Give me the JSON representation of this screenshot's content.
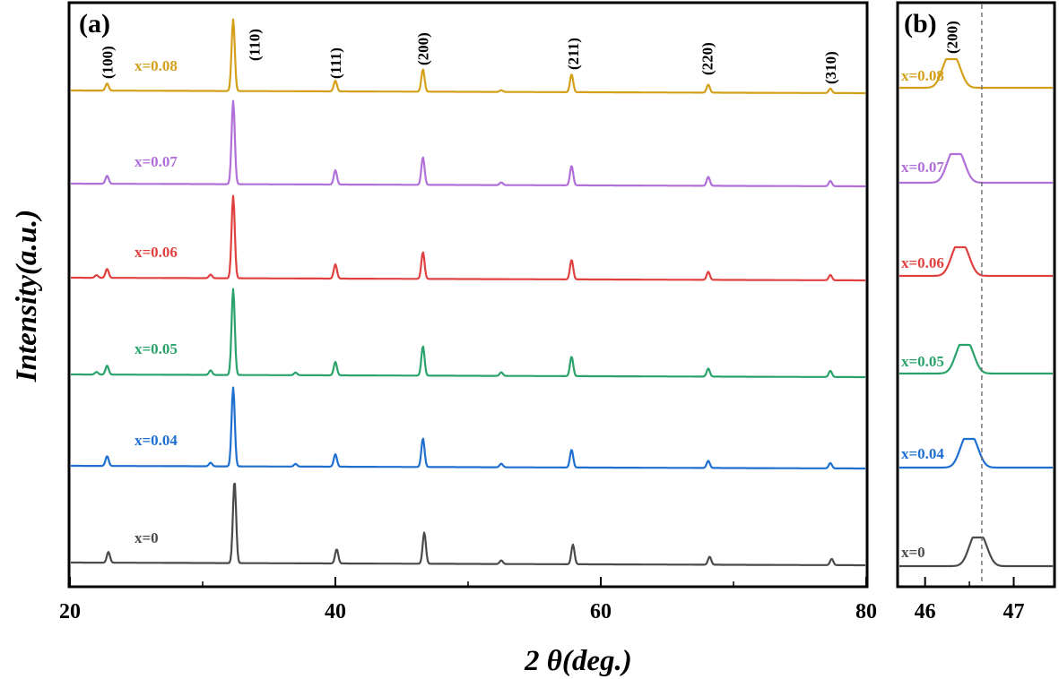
{
  "chart_data": [
    {
      "type": "line",
      "panel_label": "(a)",
      "xlabel": "2 θ(deg.)",
      "ylabel": "Intensity(a.u.)",
      "xlim": [
        20,
        80
      ],
      "xticks": [
        20,
        40,
        60,
        80
      ],
      "peak_labels": [
        {
          "text": "(100)",
          "x": 22.8
        },
        {
          "text": "(110)",
          "x": 32.4
        },
        {
          "text": "(111)",
          "x": 40.0
        },
        {
          "text": "(200)",
          "x": 46.6
        },
        {
          "text": "(211)",
          "x": 57.9
        },
        {
          "text": "(220)",
          "x": 68.0
        },
        {
          "text": "(310)",
          "x": 77.3
        }
      ],
      "series": [
        {
          "name": "x=0",
          "color": "#4a4a4a",
          "shift": 0.0,
          "peaks": [
            [
              22.9,
              12
            ],
            [
              32.4,
              92
            ],
            [
              40.1,
              16
            ],
            [
              46.7,
              35
            ],
            [
              52.5,
              4
            ],
            [
              57.9,
              22
            ],
            [
              68.2,
              9
            ],
            [
              77.4,
              7
            ]
          ]
        },
        {
          "name": "x=0.04",
          "color": "#1f6fd1",
          "shift": -0.1,
          "peaks": [
            [
              22.8,
              11
            ],
            [
              30.6,
              4
            ],
            [
              32.3,
              88
            ],
            [
              37.0,
              3
            ],
            [
              40.0,
              14
            ],
            [
              46.6,
              32
            ],
            [
              52.5,
              4
            ],
            [
              57.8,
              20
            ],
            [
              68.1,
              8
            ],
            [
              77.3,
              6
            ]
          ]
        },
        {
          "name": "x=0.05",
          "color": "#2aa36a",
          "shift": -0.15,
          "peaks": [
            [
              22.0,
              3
            ],
            [
              22.8,
              10
            ],
            [
              30.6,
              5
            ],
            [
              32.3,
              96
            ],
            [
              37.0,
              3
            ],
            [
              40.0,
              15
            ],
            [
              46.6,
              33
            ],
            [
              52.5,
              4
            ],
            [
              57.8,
              22
            ],
            [
              68.1,
              9
            ],
            [
              77.3,
              7
            ]
          ]
        },
        {
          "name": "x=0.06",
          "color": "#e0403f",
          "shift": -0.2,
          "peaks": [
            [
              22.0,
              3
            ],
            [
              22.8,
              10
            ],
            [
              30.6,
              4
            ],
            [
              32.3,
              92
            ],
            [
              40.0,
              16
            ],
            [
              46.6,
              30
            ],
            [
              57.8,
              22
            ],
            [
              68.1,
              9
            ],
            [
              77.3,
              6
            ]
          ]
        },
        {
          "name": "x=0.07",
          "color": "#b06fd9",
          "shift": -0.22,
          "peaks": [
            [
              22.8,
              9
            ],
            [
              32.3,
              93
            ],
            [
              40.0,
              16
            ],
            [
              46.6,
              31
            ],
            [
              52.5,
              3
            ],
            [
              57.8,
              22
            ],
            [
              68.1,
              10
            ],
            [
              77.3,
              6
            ]
          ]
        },
        {
          "name": "x=0.08",
          "color": "#d4a019",
          "shift": -0.25,
          "peaks": [
            [
              22.8,
              8
            ],
            [
              32.3,
              80
            ],
            [
              40.0,
              12
            ],
            [
              46.6,
              25
            ],
            [
              52.5,
              2
            ],
            [
              57.8,
              20
            ],
            [
              68.1,
              9
            ],
            [
              77.3,
              5
            ]
          ]
        }
      ]
    },
    {
      "type": "line",
      "panel_label": "(b)",
      "peak_label": "(200)",
      "xlim": [
        45.7,
        47.45
      ],
      "xticks": [
        46,
        47
      ],
      "reference_line_x": 46.64,
      "series": [
        {
          "name": "x=0",
          "color": "#4a4a4a",
          "center": 46.6
        },
        {
          "name": "x=0.04",
          "color": "#1f6fd1",
          "center": 46.5
        },
        {
          "name": "x=0.05",
          "color": "#2aa36a",
          "center": 46.45
        },
        {
          "name": "x=0.06",
          "color": "#e0403f",
          "center": 46.4
        },
        {
          "name": "x=0.07",
          "color": "#b06fd9",
          "center": 46.35
        },
        {
          "name": "x=0.08",
          "color": "#d4a019",
          "center": 46.3
        }
      ]
    }
  ]
}
